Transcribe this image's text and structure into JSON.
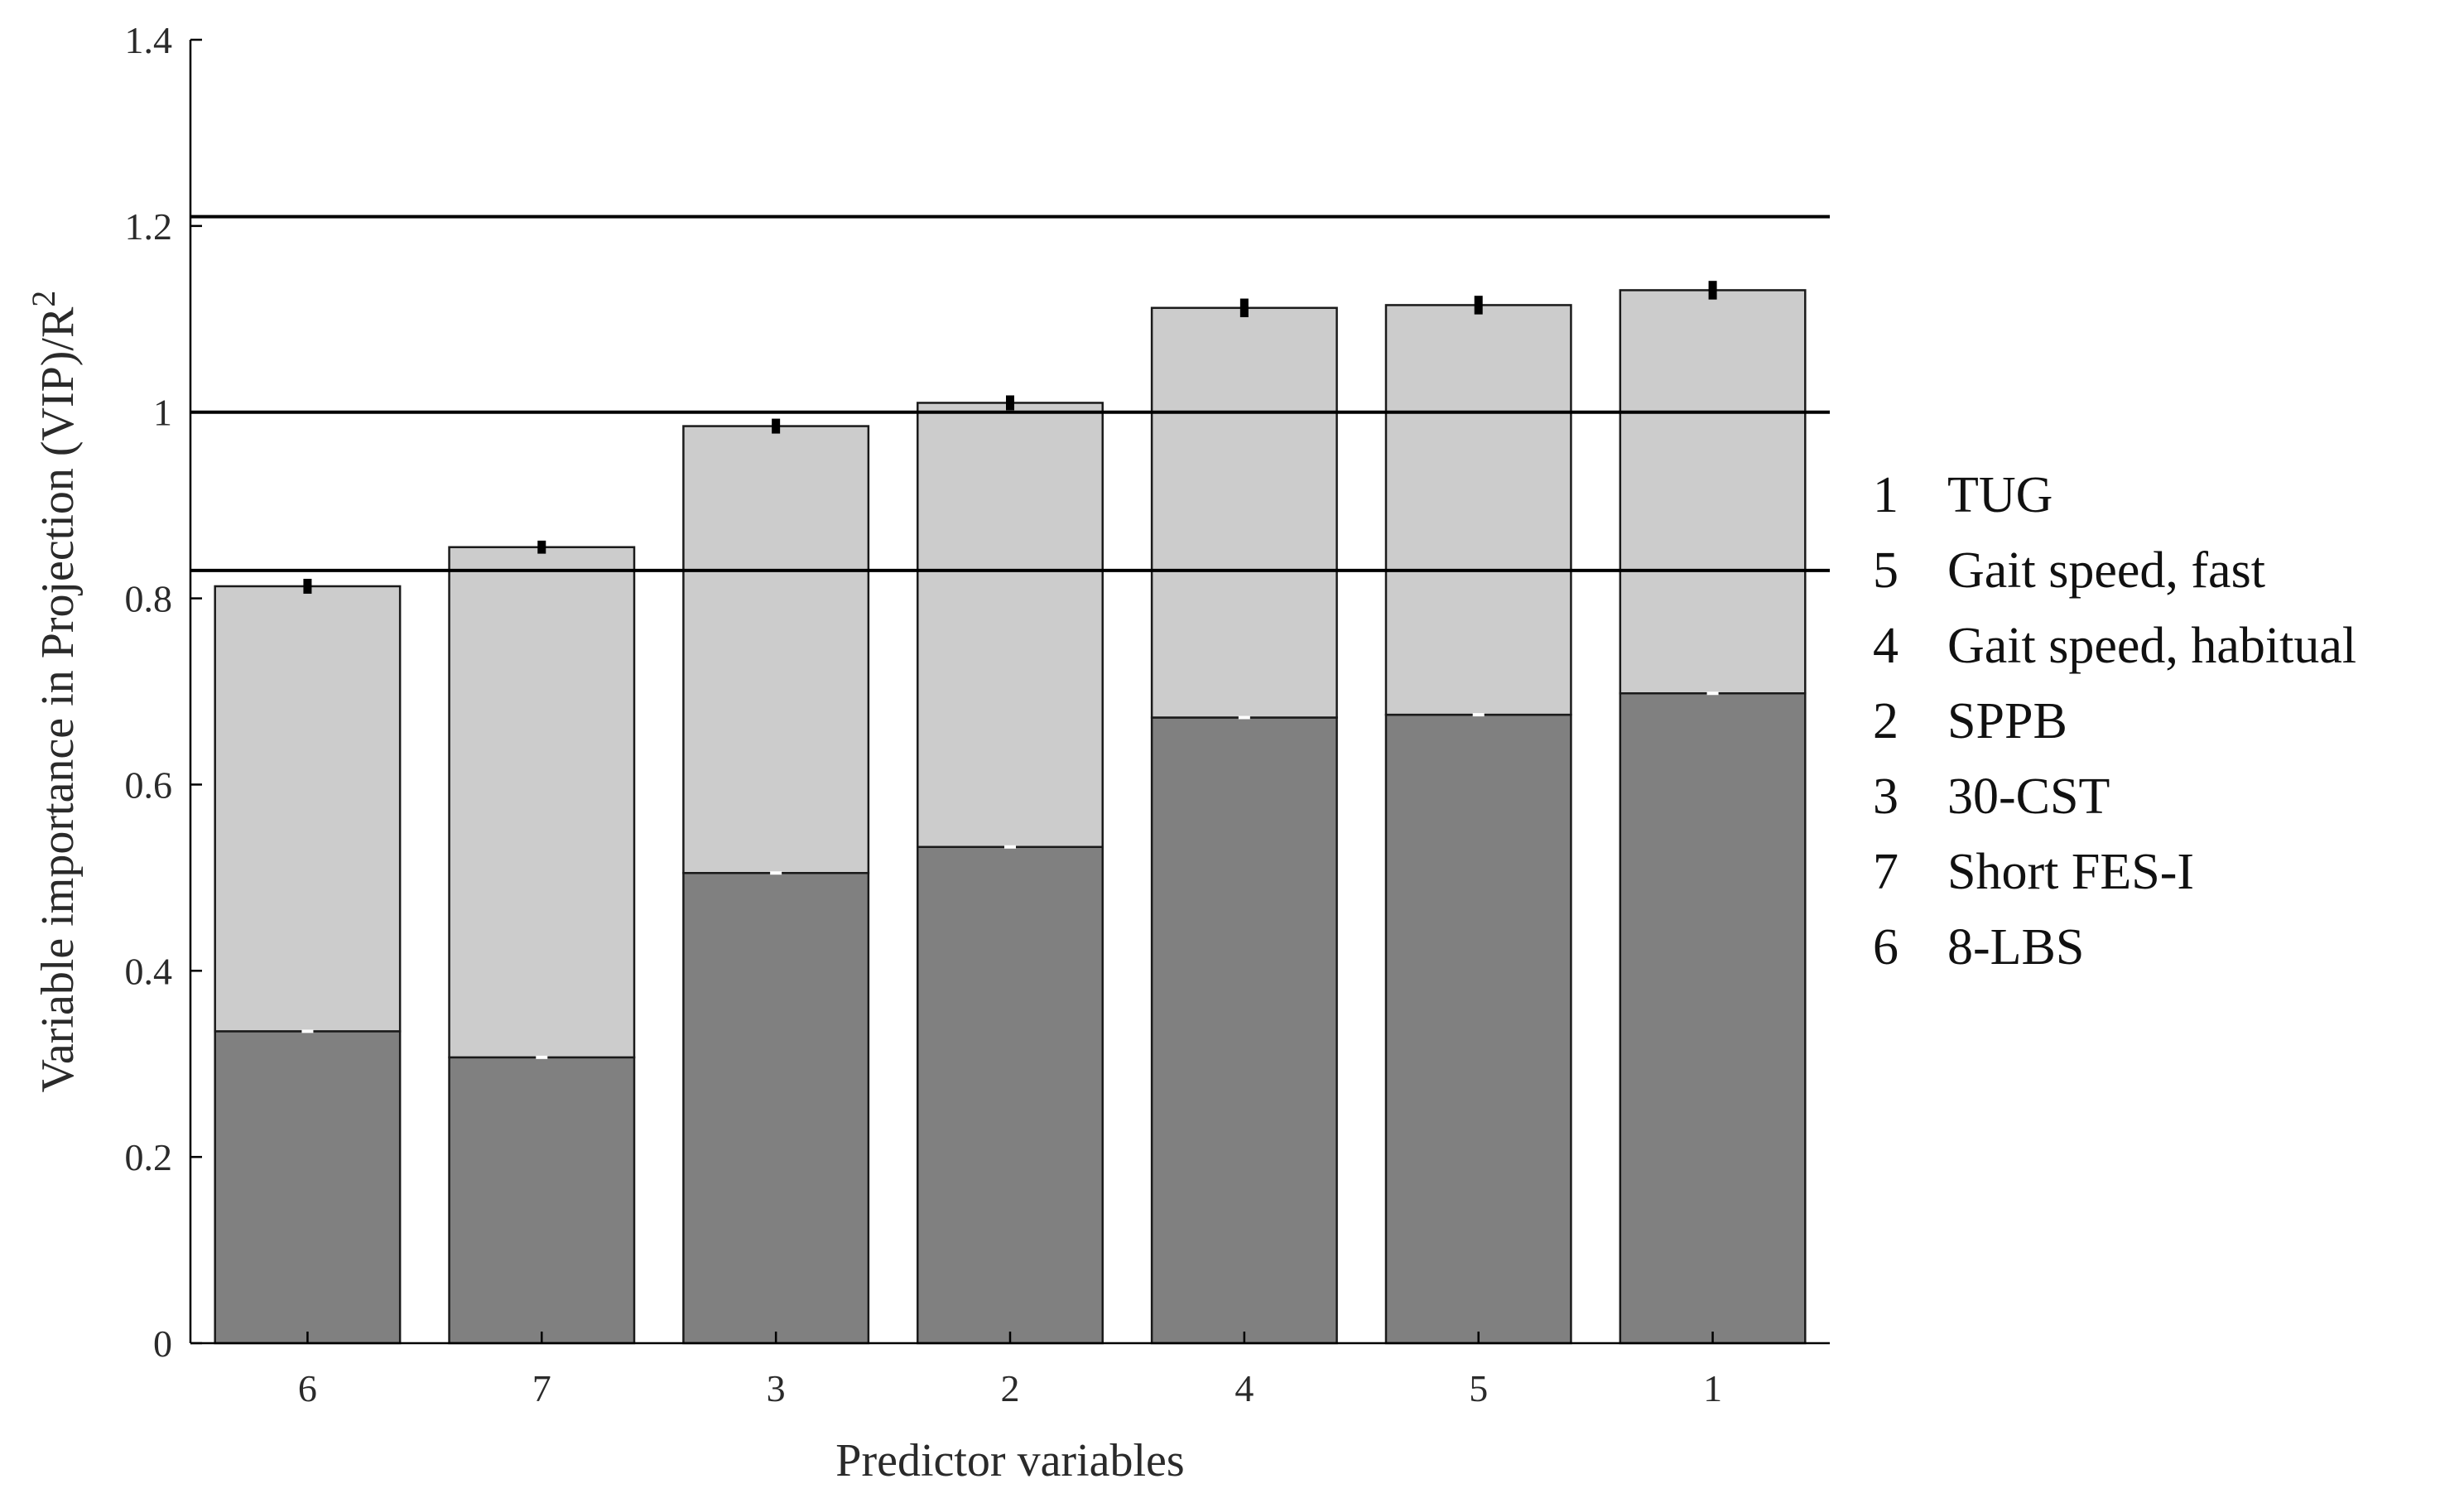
{
  "chart_data": {
    "type": "bar",
    "stacked": true,
    "categories": [
      "6",
      "7",
      "3",
      "2",
      "4",
      "5",
      "1"
    ],
    "series": [
      {
        "values": [
          0.335,
          0.307,
          0.505,
          0.533,
          0.672,
          0.675,
          0.698
        ]
      },
      {
        "values": [
          0.478,
          0.548,
          0.48,
          0.477,
          0.44,
          0.44,
          0.433
        ]
      }
    ],
    "totals": [
      0.813,
      0.855,
      0.985,
      1.01,
      1.112,
      1.115,
      1.131
    ],
    "error_bars": [
      0.008,
      0.007,
      0.008,
      0.008,
      0.01,
      0.01,
      0.01
    ],
    "reference_lines": [
      0.83,
      1.0,
      1.21
    ],
    "xlabel": "Predictor variables",
    "ylabel": "Variable importance in Projection (VIP)/R",
    "ylabel_superscript": "2",
    "ylim": [
      0,
      1.4
    ],
    "yticks": [
      "0",
      "0.2",
      "0.4",
      "0.6",
      "0.8",
      "1",
      "1.2",
      "1.4"
    ],
    "ytick_values": [
      0,
      0.2,
      0.4,
      0.6,
      0.8,
      1.0,
      1.2,
      1.4
    ],
    "legend": [
      {
        "number": "1",
        "label": "TUG"
      },
      {
        "number": "5",
        "label": "Gait speed, fast"
      },
      {
        "number": "4",
        "label": "Gait speed, habitual"
      },
      {
        "number": "2",
        "label": "SPPB"
      },
      {
        "number": "3",
        "label": "30-CST"
      },
      {
        "number": "7",
        "label": "Short FES-I"
      },
      {
        "number": "6",
        "label": "8-LBS"
      }
    ],
    "legend_position": "right",
    "colors": {
      "bottom": "#808080",
      "top": "#cccccc",
      "outline": "#1a1a1a",
      "lines": "#000000"
    }
  }
}
